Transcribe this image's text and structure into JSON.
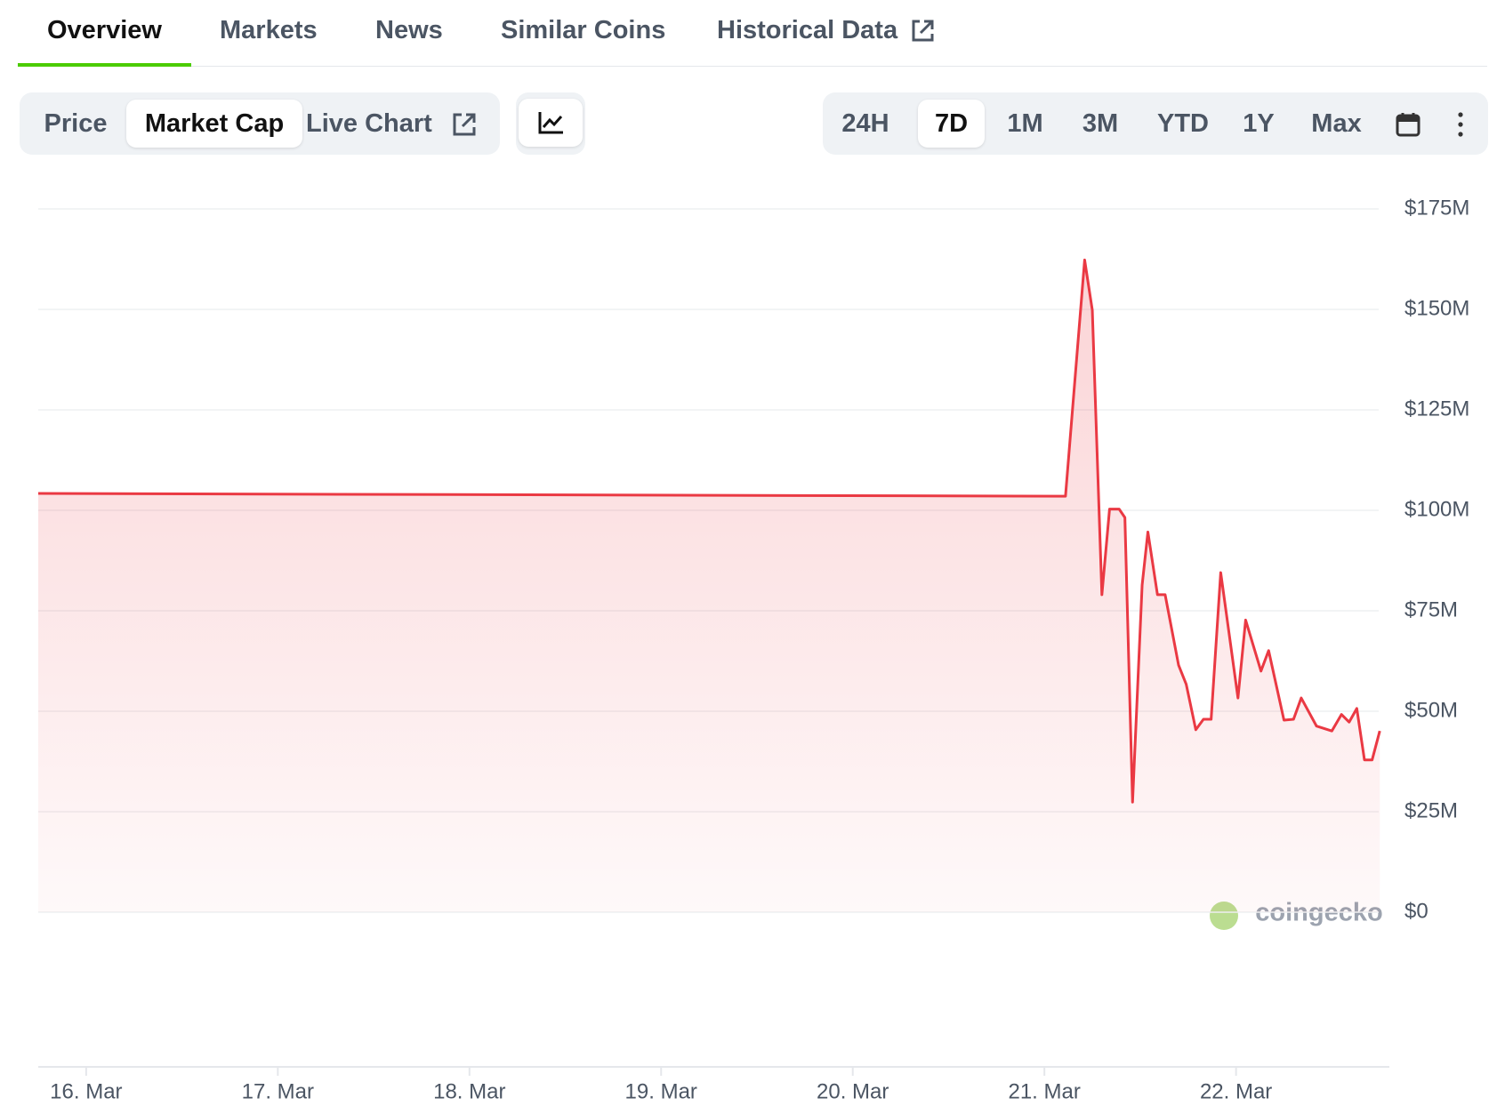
{
  "tabs": [
    "Overview",
    "Markets",
    "News",
    "Similar Coins",
    "Historical Data"
  ],
  "chart_modes": [
    "Price",
    "Market Cap",
    "Live Chart"
  ],
  "ranges": [
    "24H",
    "7D",
    "1M",
    "3M",
    "YTD",
    "1Y",
    "Max"
  ],
  "watermark": "coingecko",
  "chart_data": {
    "type": "line",
    "x": [
      15.75,
      21.11,
      21.21,
      21.25,
      21.3,
      21.34,
      21.39,
      21.42,
      21.46,
      21.51,
      21.54,
      21.59,
      21.63,
      21.7,
      21.74,
      21.79,
      21.83,
      21.87,
      21.92,
      22.01,
      22.05,
      22.13,
      22.17,
      22.25,
      22.3,
      22.34,
      22.42,
      22.5,
      22.55,
      22.59,
      22.63,
      22.67,
      22.71,
      22.75
    ],
    "series": [
      {
        "name": "Market Cap",
        "color": "#ea3943",
        "values": [
          104.2,
          103.5,
          162.3,
          149.8,
          79.0,
          100.3,
          100.3,
          98.2,
          27.4,
          81.4,
          94.6,
          79.0,
          79.0,
          61.5,
          56.7,
          45.4,
          48.0,
          48.0,
          84.5,
          53.3,
          72.7,
          60.0,
          65.1,
          47.8,
          48.0,
          53.3,
          46.3,
          45.1,
          49.2,
          47.3,
          50.7,
          37.9,
          37.9,
          45.1
        ]
      }
    ],
    "xlim": [
      15.75,
      22.8
    ],
    "xticks": [
      {
        "value": 16,
        "label": "16. Mar"
      },
      {
        "value": 17,
        "label": "17. Mar"
      },
      {
        "value": 18,
        "label": "18. Mar"
      },
      {
        "value": 19,
        "label": "19. Mar"
      },
      {
        "value": 20,
        "label": "20. Mar"
      },
      {
        "value": 21,
        "label": "21. Mar"
      },
      {
        "value": 22,
        "label": "22. Mar"
      }
    ],
    "ylim": [
      0,
      175
    ],
    "yticks": [
      {
        "value": 0,
        "label": "$0"
      },
      {
        "value": 25,
        "label": "$25M"
      },
      {
        "value": 50,
        "label": "$50M"
      },
      {
        "value": 75,
        "label": "$75M"
      },
      {
        "value": 100,
        "label": "$100M"
      },
      {
        "value": 125,
        "label": "$125M"
      },
      {
        "value": 150,
        "label": "$150M"
      },
      {
        "value": 175,
        "label": "$175M"
      }
    ],
    "grid": true
  }
}
